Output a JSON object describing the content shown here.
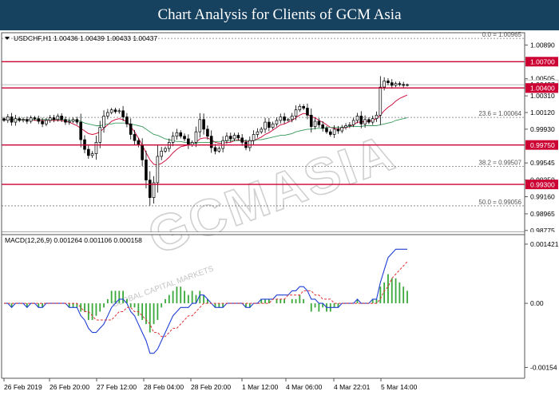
{
  "header": {
    "title": "Chart Analysis for Clients of GCM Asia"
  },
  "watermark": {
    "brand": "GCMASIA",
    "sub": "GLOBAL CAPITAL MARKETS"
  },
  "chart_data": {
    "type": "candlestick",
    "symbol_info": "USDCHF,H1  1.00436 1.00439 1.00433 1.00437",
    "x_tick_labels": [
      "26 Feb 2019",
      "26 Feb 20:00",
      "27 Feb 12:00",
      "28 Feb 04:00",
      "28 Feb 20:00",
      "1 Mar 12:00",
      "4 Mar 06:00",
      "4 Mar 22:01",
      "5 Mar 14:00"
    ],
    "price_axis": {
      "ylim": [
        0.98755,
        1.0103
      ],
      "tick_labels": [
        "1.00890",
        "1.00505",
        "1.00310",
        "1.00120",
        "0.99930",
        "0.99545",
        "0.99350",
        "0.99160",
        "0.98965",
        "0.98775"
      ],
      "tick_values": [
        1.0089,
        1.00505,
        1.0031,
        1.0012,
        0.9993,
        0.99545,
        0.9935,
        0.9916,
        0.98965,
        0.98775
      ]
    },
    "current_price": {
      "label": "1.00437",
      "value": 1.00437
    },
    "support_resistance": [
      {
        "label": "1.00700",
        "value": 1.007,
        "color": "#cc0033"
      },
      {
        "label": "1.00400",
        "value": 1.004,
        "color": "#cc0033"
      },
      {
        "label": "0.99750",
        "value": 0.9975,
        "color": "#cc0033"
      },
      {
        "label": "0.99300",
        "value": 0.993,
        "color": "#cc0033"
      }
    ],
    "fibonacci": [
      {
        "label": "0.0 = 1.00965",
        "value": 1.00965
      },
      {
        "label": "23.6 = 1.00064",
        "value": 1.00064
      },
      {
        "label": "38.2 = 0.99507",
        "value": 0.99507
      },
      {
        "label": "50.0 = 0.99056",
        "value": 0.99056
      }
    ],
    "close_series": [
      1.0003,
      1.0007,
      1.0001,
      1.0005,
      1.0003,
      1.0004,
      1.0002,
      1.0006,
      1.0005,
      1.0002,
      0.9999,
      1.0003,
      1.0006,
      1.0004,
      1.0008,
      1.0004,
      1.0001,
      1.0002,
      1.0004,
      1.0001,
      0.9981,
      0.997,
      0.9963,
      0.9965,
      0.9978,
      0.9995,
      1.0008,
      1.0012,
      1.0015,
      1.0013,
      1.0014,
      1.0007,
      0.9999,
      0.9987,
      0.998,
      0.9975,
      0.9958,
      0.9935,
      0.9915,
      0.9932,
      0.9962,
      0.9968,
      0.9971,
      0.9978,
      0.9985,
      0.9989,
      0.9985,
      0.9982,
      0.9975,
      0.9978,
      0.999,
      1.0004,
      0.9993,
      0.9985,
      0.9972,
      0.9968,
      0.9971,
      0.998,
      0.9985,
      0.9982,
      0.9986,
      0.9983,
      0.9978,
      0.9972,
      0.998,
      0.9987,
      0.999,
      0.9993,
      1.0001,
      0.9995,
      0.9999,
      1.0003,
      1.0007,
      1.0003,
      1.0004,
      1.0008,
      1.0015,
      1.0019,
      1.0017,
      1.0009,
      0.9996,
      1.0002,
      0.9998,
      0.9994,
      0.999,
      0.9987,
      0.9993,
      0.9991,
      0.9995,
      0.9997,
      0.9998,
      1.0003,
      1.0008,
      0.9999,
      1.0004,
      1.0001,
      1.0005,
      1.0009,
      1.0041,
      1.0048,
      1.0046,
      1.0043,
      1.0045,
      1.0044,
      1.0043,
      1.00437
    ],
    "moving_averages": [
      {
        "color": "#cc0033",
        "values": [
          1.0004,
          1.0004,
          1.0004,
          1.0004,
          1.0004,
          1.0004,
          1.0004,
          1.0004,
          1.0003,
          1.0003,
          1.0003,
          1.0003,
          1.0003,
          1.0003,
          1.0003,
          1.0003,
          1.0002,
          1.0001,
          0.9999,
          0.9997,
          0.9994,
          0.9991,
          0.9988,
          0.9987,
          0.9988,
          0.999,
          0.9994,
          0.9998,
          1.0002,
          1.0004,
          1.0005,
          1.0004,
          1.0001,
          0.9996,
          0.999,
          0.9983,
          0.9975,
          0.9966,
          0.9958,
          0.9953,
          0.9952,
          0.9954,
          0.9957,
          0.9961,
          0.9966,
          0.997,
          0.9973,
          0.9974,
          0.9975,
          0.9976,
          0.9978,
          0.9982,
          0.9983,
          0.9983,
          0.9981,
          0.9978,
          0.9977,
          0.9977,
          0.9978,
          0.9978,
          0.998,
          0.9981,
          0.998,
          0.9979,
          0.9979,
          0.998,
          0.9982,
          0.9984,
          0.9987,
          0.9989,
          0.9992,
          0.9995,
          0.9998,
          0.9999,
          1.0001,
          1.0003,
          1.0006,
          1.0009,
          1.0011,
          1.001,
          1.0007,
          1.0006,
          1.0003,
          1.0001,
          0.9998,
          0.9995,
          0.9994,
          0.9993,
          0.9994,
          0.9995,
          0.9996,
          0.9998,
          1.0001,
          1.0001,
          1.0002,
          1.0002,
          1.0003,
          1.0005,
          1.0009,
          1.0014,
          1.0018,
          1.0021,
          1.0025,
          1.0028,
          1.003,
          1.0032
        ]
      },
      {
        "color": "#3a9a5c",
        "values": [
          1.0004,
          1.0004,
          1.0004,
          1.0004,
          1.0004,
          1.0004,
          1.0004,
          1.0004,
          1.0004,
          1.0004,
          1.0004,
          1.0004,
          1.0004,
          1.0004,
          1.0004,
          1.0004,
          1.0004,
          1.0003,
          1.0003,
          1.0003,
          1.0002,
          1.0,
          0.9999,
          0.9998,
          0.9997,
          0.9997,
          0.9998,
          0.9999,
          0.9999,
          1.0,
          1.0,
          1.0,
          1.0,
          0.9999,
          0.9998,
          0.9997,
          0.9996,
          0.9993,
          0.999,
          0.9987,
          0.9986,
          0.9984,
          0.9982,
          0.9981,
          0.998,
          0.9979,
          0.9979,
          0.9978,
          0.9978,
          0.9977,
          0.9977,
          0.9978,
          0.9978,
          0.9978,
          0.9978,
          0.9979,
          0.9979,
          0.9979,
          0.998,
          0.998,
          0.998,
          0.998,
          0.998,
          0.998,
          0.998,
          0.998,
          0.9981,
          0.9981,
          0.9982,
          0.9983,
          0.9984,
          0.9985,
          0.9986,
          0.9986,
          0.9987,
          0.9988,
          0.999,
          0.9991,
          0.9992,
          0.9993,
          0.9993,
          0.9994,
          0.9994,
          0.9994,
          0.9995,
          0.9995,
          0.9995,
          0.9995,
          0.9995,
          0.9996,
          0.9996,
          0.9996,
          0.9996,
          0.9996,
          0.9997,
          0.9997,
          0.9997,
          0.9997,
          0.9998,
          0.9999,
          1.0,
          1.0001,
          1.0003,
          1.0004,
          1.0005,
          1.0006
        ]
      }
    ],
    "macd": {
      "label": "MACD(12,26,9) 0.001264 0.001106 0.000158",
      "ylim": [
        -0.0018,
        0.00165
      ],
      "tick_labels": [
        "0.001421",
        "0.00",
        "-0.00154"
      ],
      "tick_values": [
        0.001421,
        0.0,
        -0.00154
      ],
      "macd_color": "#1f3fd6",
      "signal_color": "#e03030",
      "hist_color": "#3aa83a",
      "macd_values": [
        0.0,
        0.0,
        -0.0001,
        0.0,
        0.0,
        0.0,
        -0.0001,
        0.0,
        0.0,
        -0.0001,
        -0.0001,
        0.0,
        0.0,
        0.0,
        0.0,
        0.0,
        0.0,
        -0.0001,
        -0.0001,
        -0.0001,
        -0.0003,
        -0.0004,
        -0.0006,
        -0.0007,
        -0.0007,
        -0.0006,
        -0.0005,
        -0.0003,
        -0.0001,
        0.0,
        0.0001,
        0.0001,
        0.0,
        -0.0002,
        -0.0003,
        -0.0005,
        -0.0007,
        -0.0009,
        -0.0012,
        -0.0012,
        -0.0011,
        -0.0009,
        -0.0007,
        -0.0005,
        -0.0003,
        -0.0002,
        -0.0001,
        -0.0001,
        -0.0001,
        0.0,
        0.0,
        0.0002,
        0.0002,
        0.0001,
        0.0,
        -0.0001,
        -0.0001,
        -0.0001,
        0.0,
        0.0,
        0.0,
        0.0,
        0.0,
        -0.0001,
        -0.0001,
        0.0,
        0.0,
        0.0001,
        0.0001,
        0.0001,
        0.0001,
        0.0002,
        0.0002,
        0.0002,
        0.0002,
        0.0003,
        0.0003,
        0.0004,
        0.0004,
        0.0003,
        0.0001,
        0.0001,
        0.0,
        0.0,
        -0.0001,
        -0.0001,
        -0.0001,
        -0.0001,
        0.0,
        0.0,
        0.0,
        0.0,
        0.0001,
        0.0,
        0.0,
        0.0,
        0.0001,
        0.0001,
        0.0005,
        0.0008,
        0.0011,
        0.0012,
        0.0013,
        0.0013,
        0.0013,
        0.0013
      ],
      "signal_values": [
        0.0,
        0.0,
        0.0,
        0.0,
        0.0,
        0.0,
        0.0,
        0.0,
        0.0,
        0.0,
        0.0,
        0.0,
        0.0,
        0.0,
        0.0,
        0.0,
        0.0,
        0.0,
        0.0,
        0.0,
        -0.0001,
        -0.0002,
        -0.0002,
        -0.0003,
        -0.0004,
        -0.0004,
        -0.0004,
        -0.0004,
        -0.0004,
        -0.0003,
        -0.0002,
        -0.0002,
        -0.0001,
        -0.0001,
        -0.0002,
        -0.0002,
        -0.0003,
        -0.0004,
        -0.0005,
        -0.0007,
        -0.0007,
        -0.0008,
        -0.0008,
        -0.0007,
        -0.0006,
        -0.0006,
        -0.0005,
        -0.0004,
        -0.0003,
        -0.0003,
        -0.0002,
        -0.0001,
        0.0,
        0.0,
        0.0,
        0.0,
        0.0,
        0.0,
        0.0,
        0.0,
        0.0,
        0.0,
        0.0,
        0.0,
        0.0,
        0.0,
        0.0,
        0.0,
        0.0,
        0.0,
        0.0001,
        0.0001,
        0.0001,
        0.0001,
        0.0002,
        0.0002,
        0.0002,
        0.0002,
        0.0003,
        0.0003,
        0.0003,
        0.0002,
        0.0002,
        0.0001,
        0.0001,
        0.0001,
        0.0,
        0.0,
        0.0,
        0.0,
        0.0,
        0.0,
        0.0,
        0.0,
        0.0,
        0.0,
        0.0,
        0.0,
        0.0001,
        0.0003,
        0.0004,
        0.0006,
        0.0007,
        0.0008,
        0.0009,
        0.001
      ]
    }
  }
}
